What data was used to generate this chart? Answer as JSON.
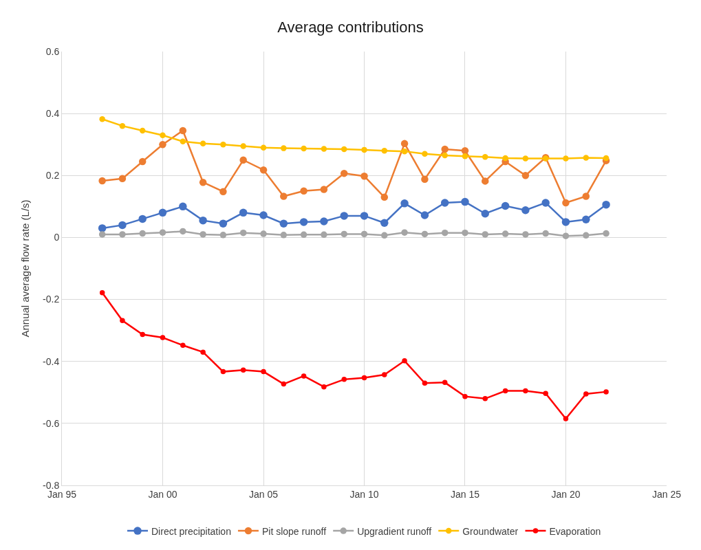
{
  "chart_data": {
    "type": "line",
    "title": "Average contributions",
    "ylabel": "Annual average flow rate (L/s)",
    "x": [
      "1997-01",
      "1998-01",
      "1999-01",
      "2000-01",
      "2001-01",
      "2002-01",
      "2003-01",
      "2004-01",
      "2005-01",
      "2006-01",
      "2007-01",
      "2008-01",
      "2009-01",
      "2010-01",
      "2011-01",
      "2012-01",
      "2013-01",
      "2014-01",
      "2015-01",
      "2016-01",
      "2017-01",
      "2018-01",
      "2019-01",
      "2020-01",
      "2021-01",
      "2022-01"
    ],
    "series": [
      {
        "name": "Direct precipitation",
        "color": "#4472c4",
        "values": [
          0.03,
          0.04,
          0.06,
          0.08,
          0.1,
          0.055,
          0.045,
          0.08,
          0.072,
          0.045,
          0.05,
          0.052,
          0.07,
          0.07,
          0.047,
          0.11,
          0.072,
          0.112,
          0.115,
          0.077,
          0.102,
          0.088,
          0.112,
          0.05,
          0.058,
          0.106
        ]
      },
      {
        "name": "Pit slope runoff",
        "color": "#ed7d31",
        "values": [
          0.183,
          0.19,
          0.245,
          0.3,
          0.345,
          0.178,
          0.148,
          0.25,
          0.218,
          0.133,
          0.15,
          0.155,
          0.207,
          0.198,
          0.13,
          0.303,
          0.188,
          0.285,
          0.28,
          0.182,
          0.245,
          0.2,
          0.258,
          0.112,
          0.133,
          0.248
        ]
      },
      {
        "name": "Upgradient runoff",
        "color": "#a5a5a5",
        "values": [
          0.01,
          0.01,
          0.013,
          0.016,
          0.02,
          0.01,
          0.008,
          0.015,
          0.012,
          0.008,
          0.009,
          0.009,
          0.011,
          0.011,
          0.007,
          0.016,
          0.011,
          0.015,
          0.015,
          0.01,
          0.012,
          0.01,
          0.013,
          0.005,
          0.007,
          0.013
        ]
      },
      {
        "name": "Groundwater",
        "color": "#ffc000",
        "values": [
          0.382,
          0.36,
          0.345,
          0.33,
          0.31,
          0.303,
          0.3,
          0.295,
          0.29,
          0.288,
          0.287,
          0.286,
          0.285,
          0.283,
          0.28,
          0.278,
          0.27,
          0.265,
          0.262,
          0.26,
          0.256,
          0.255,
          0.255,
          0.255,
          0.257,
          0.256
        ]
      },
      {
        "name": "Evaporation",
        "color": "#ff0000",
        "values": [
          -0.178,
          -0.268,
          -0.313,
          -0.323,
          -0.348,
          -0.37,
          -0.433,
          -0.428,
          -0.433,
          -0.473,
          -0.447,
          -0.482,
          -0.458,
          -0.453,
          -0.443,
          -0.398,
          -0.47,
          -0.468,
          -0.513,
          -0.52,
          -0.495,
          -0.495,
          -0.503,
          -0.585,
          -0.505,
          -0.498
        ]
      }
    ],
    "xlim": [
      "1995-01",
      "2025-01"
    ],
    "xticks": [
      {
        "value": "1995-01",
        "label": "Jan 95"
      },
      {
        "value": "2000-01",
        "label": "Jan 00"
      },
      {
        "value": "2005-01",
        "label": "Jan 05"
      },
      {
        "value": "2010-01",
        "label": "Jan 10"
      },
      {
        "value": "2015-01",
        "label": "Jan 15"
      },
      {
        "value": "2020-01",
        "label": "Jan 20"
      },
      {
        "value": "2025-01",
        "label": "Jan 25"
      }
    ],
    "ylim": [
      -0.8,
      0.6
    ],
    "yticks": [
      -0.8,
      -0.6,
      -0.4,
      -0.2,
      0,
      0.2,
      0.4,
      0.6
    ],
    "grid": true,
    "legend": "bottom",
    "marker": "circle",
    "line_style": "solid"
  }
}
